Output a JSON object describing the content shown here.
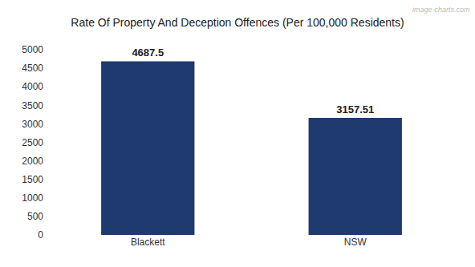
{
  "chart_data": {
    "type": "bar",
    "title": "Rate Of Property And Deception Offences (Per 100,000 Residents)",
    "categories": [
      "Blackett",
      "NSW"
    ],
    "values": [
      4687.5,
      3157.51
    ],
    "color": "#1f3a6e",
    "ylim": [
      0,
      5000
    ],
    "yticks": [
      0,
      500,
      1000,
      1500,
      2000,
      2500,
      3000,
      3500,
      4000,
      4500,
      5000
    ],
    "grid": false,
    "data_labels": true,
    "annotations": [
      "image-charts.com"
    ]
  }
}
